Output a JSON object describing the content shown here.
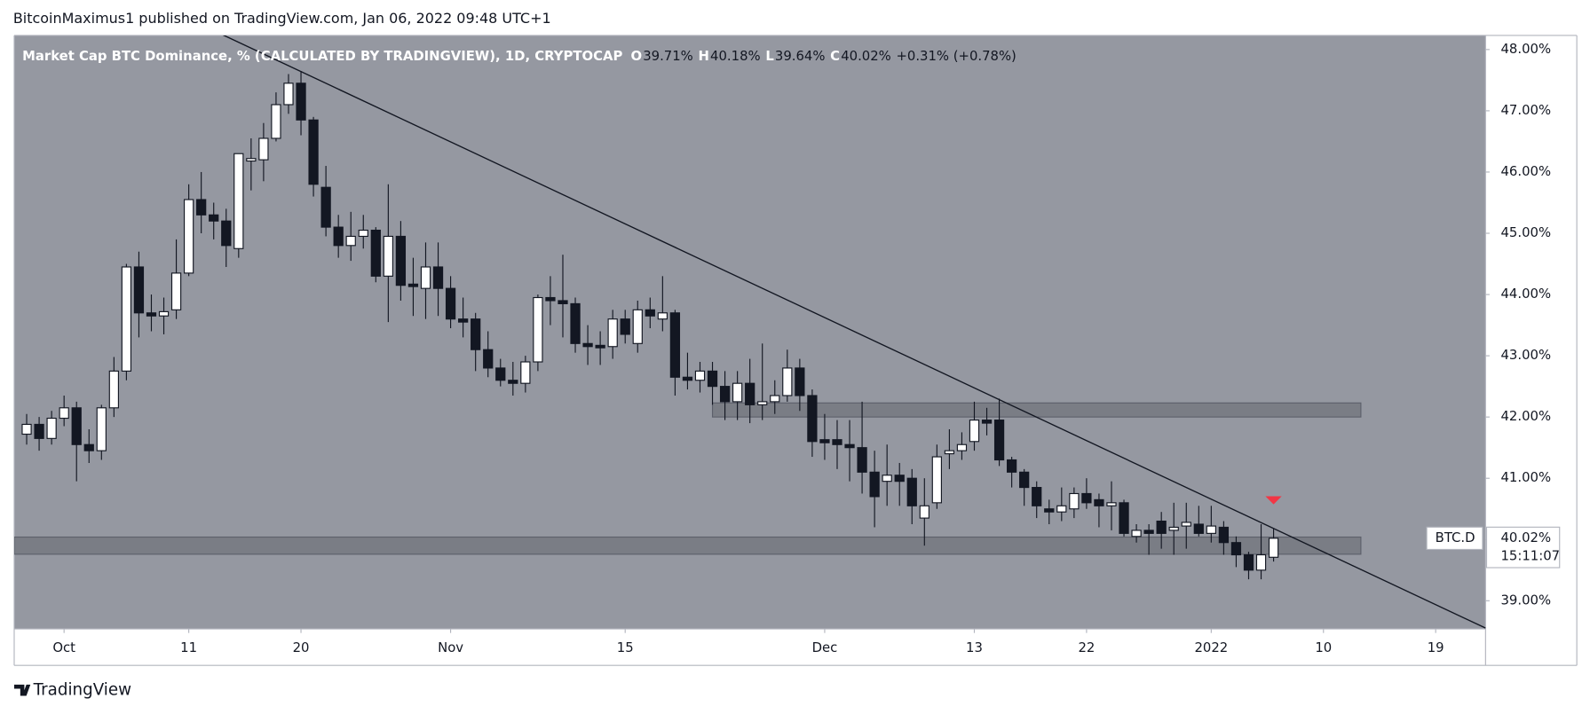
{
  "header": "BitcoinMaximus1 published on TradingView.com, Jan 06, 2022 09:48 UTC+1",
  "footer": "TradingView",
  "chart_data": {
    "type": "candlestick",
    "title": "Market Cap BTC Dominance, % (CALCULATED BY TRADINGVIEW), 1D, CRYPTOCAP",
    "legend_items": [
      {
        "key": "O",
        "value": "39.71%"
      },
      {
        "key": "H",
        "value": "40.18%"
      },
      {
        "key": "L",
        "value": "39.64%"
      },
      {
        "key": "C",
        "value": "40.02%"
      }
    ],
    "change": "+0.31% (+0.78%)",
    "up_color": "#ffffff",
    "down_color": "#131722",
    "background": "#9598a1",
    "x": [
      "2021-09-28",
      "2021-09-29",
      "2021-09-30",
      "2021-10-01",
      "2021-10-02",
      "2021-10-03",
      "2021-10-04",
      "2021-10-05",
      "2021-10-06",
      "2021-10-07",
      "2021-10-08",
      "2021-10-09",
      "2021-10-10",
      "2021-10-11",
      "2021-10-12",
      "2021-10-13",
      "2021-10-14",
      "2021-10-15",
      "2021-10-16",
      "2021-10-17",
      "2021-10-18",
      "2021-10-19",
      "2021-10-20",
      "2021-10-21",
      "2021-10-22",
      "2021-10-23",
      "2021-10-24",
      "2021-10-25",
      "2021-10-26",
      "2021-10-27",
      "2021-10-28",
      "2021-10-29",
      "2021-10-30",
      "2021-10-31",
      "2021-11-01",
      "2021-11-02",
      "2021-11-03",
      "2021-11-04",
      "2021-11-05",
      "2021-11-06",
      "2021-11-07",
      "2021-11-08",
      "2021-11-09",
      "2021-11-10",
      "2021-11-11",
      "2021-11-12",
      "2021-11-13",
      "2021-11-14",
      "2021-11-15",
      "2021-11-16",
      "2021-11-17",
      "2021-11-18",
      "2021-11-19",
      "2021-11-20",
      "2021-11-21",
      "2021-11-22",
      "2021-11-23",
      "2021-11-24",
      "2021-11-25",
      "2021-11-26",
      "2021-11-27",
      "2021-11-28",
      "2021-11-29",
      "2021-11-30",
      "2021-12-01",
      "2021-12-02",
      "2021-12-03",
      "2021-12-04",
      "2021-12-05",
      "2021-12-06",
      "2021-12-07",
      "2021-12-08",
      "2021-12-09",
      "2021-12-10",
      "2021-12-11",
      "2021-12-12",
      "2021-12-13",
      "2021-12-14",
      "2021-12-15",
      "2021-12-16",
      "2021-12-17",
      "2021-12-18",
      "2021-12-19",
      "2021-12-20",
      "2021-12-21",
      "2021-12-22",
      "2021-12-23",
      "2021-12-24",
      "2021-12-25",
      "2021-12-26",
      "2021-12-27",
      "2021-12-28",
      "2021-12-29",
      "2021-12-30",
      "2021-12-31",
      "2022-01-01",
      "2022-01-02",
      "2022-01-03",
      "2022-01-04",
      "2022-01-05",
      "2022-01-06"
    ],
    "open": [
      41.72,
      41.88,
      41.65,
      41.98,
      42.15,
      41.55,
      41.45,
      42.15,
      42.75,
      44.45,
      43.7,
      43.65,
      43.75,
      44.35,
      45.55,
      45.3,
      45.2,
      44.75,
      46.18,
      46.2,
      46.55,
      47.1,
      47.45,
      46.85,
      45.75,
      45.1,
      44.8,
      44.95,
      45.05,
      44.3,
      44.95,
      44.17,
      44.1,
      44.45,
      44.1,
      43.6,
      43.6,
      43.1,
      42.8,
      42.6,
      42.55,
      42.9,
      43.95,
      43.9,
      43.85,
      43.2,
      43.17,
      43.15,
      43.6,
      43.2,
      43.75,
      43.6,
      43.7,
      42.65,
      42.6,
      42.75,
      42.5,
      42.25,
      42.55,
      42.2,
      42.25,
      42.35,
      42.8,
      42.35,
      41.63,
      41.63,
      41.55,
      41.5,
      41.1,
      40.95,
      41.05,
      41.0,
      40.35,
      40.6,
      41.4,
      41.45,
      41.6,
      41.95,
      41.95,
      41.3,
      41.1,
      40.85,
      40.5,
      40.45,
      40.5,
      40.75,
      40.65,
      40.55,
      40.6,
      40.05,
      40.15,
      40.3,
      40.15,
      40.22,
      40.25,
      40.1,
      40.2,
      39.95,
      39.75,
      39.5,
      39.71
    ],
    "high": [
      42.05,
      42.0,
      42.1,
      42.35,
      42.25,
      41.8,
      42.2,
      42.98,
      44.5,
      44.7,
      44.0,
      43.95,
      44.9,
      45.8,
      46.0,
      45.5,
      45.4,
      46.3,
      46.55,
      46.8,
      47.3,
      47.6,
      47.65,
      46.9,
      46.1,
      45.3,
      45.35,
      45.3,
      45.1,
      45.8,
      45.2,
      44.6,
      44.85,
      44.85,
      44.3,
      43.95,
      43.7,
      43.4,
      42.95,
      42.9,
      43.0,
      44.0,
      44.3,
      44.65,
      43.95,
      43.5,
      43.4,
      43.75,
      43.75,
      43.9,
      43.95,
      44.3,
      43.75,
      43.05,
      42.9,
      42.9,
      42.75,
      42.75,
      42.95,
      43.2,
      42.6,
      43.1,
      42.95,
      42.45,
      42.05,
      41.95,
      41.95,
      42.25,
      41.45,
      41.55,
      41.25,
      41.15,
      41.0,
      41.55,
      41.8,
      41.75,
      42.25,
      42.15,
      42.3,
      41.35,
      41.15,
      40.95,
      40.65,
      40.85,
      40.85,
      41.0,
      40.75,
      40.95,
      40.65,
      40.25,
      40.25,
      40.45,
      40.6,
      40.6,
      40.55,
      40.55,
      40.3,
      40.05,
      39.8,
      40.25,
      40.18
    ],
    "low": [
      41.55,
      41.45,
      41.55,
      41.85,
      40.95,
      41.25,
      41.3,
      42.0,
      42.6,
      43.3,
      43.4,
      43.35,
      43.6,
      44.3,
      45.0,
      44.9,
      44.45,
      44.6,
      45.7,
      45.85,
      46.5,
      46.95,
      46.6,
      45.6,
      44.95,
      44.6,
      44.55,
      44.75,
      44.2,
      43.55,
      43.9,
      43.65,
      43.6,
      43.65,
      43.45,
      43.3,
      42.75,
      42.65,
      42.5,
      42.35,
      42.4,
      42.75,
      43.5,
      43.3,
      43.05,
      42.85,
      42.85,
      42.95,
      43.2,
      43.05,
      43.45,
      43.4,
      42.35,
      42.45,
      42.4,
      42.2,
      41.95,
      41.95,
      41.9,
      41.95,
      42.05,
      42.25,
      42.1,
      41.35,
      41.3,
      41.15,
      40.95,
      40.75,
      40.2,
      40.55,
      40.55,
      40.25,
      39.9,
      40.5,
      41.15,
      41.3,
      41.45,
      41.7,
      41.2,
      40.85,
      40.55,
      40.35,
      40.25,
      40.3,
      40.35,
      40.5,
      40.2,
      40.15,
      40.05,
      39.95,
      39.75,
      39.85,
      39.75,
      39.85,
      40.05,
      39.95,
      39.75,
      39.55,
      39.35,
      39.35,
      39.64
    ],
    "close": [
      41.88,
      41.65,
      41.98,
      42.15,
      41.55,
      41.45,
      42.15,
      42.75,
      44.45,
      43.7,
      43.65,
      43.72,
      44.35,
      45.55,
      45.3,
      45.2,
      44.8,
      46.3,
      46.22,
      46.55,
      47.1,
      47.45,
      46.85,
      45.8,
      45.1,
      44.8,
      44.95,
      45.05,
      44.3,
      44.95,
      44.15,
      44.13,
      44.45,
      44.1,
      43.6,
      43.55,
      43.1,
      42.8,
      42.6,
      42.55,
      42.9,
      43.95,
      43.9,
      43.85,
      43.2,
      43.15,
      43.13,
      43.6,
      43.35,
      43.75,
      43.65,
      43.7,
      42.65,
      42.6,
      42.75,
      42.5,
      42.25,
      42.55,
      42.2,
      42.25,
      42.35,
      42.8,
      42.35,
      41.6,
      41.58,
      41.55,
      41.5,
      41.1,
      40.7,
      41.05,
      40.95,
      40.55,
      40.55,
      41.35,
      41.45,
      41.55,
      41.95,
      41.9,
      41.3,
      41.1,
      40.85,
      40.55,
      40.45,
      40.55,
      40.75,
      40.6,
      40.55,
      40.6,
      40.1,
      40.15,
      40.1,
      40.1,
      40.2,
      40.28,
      40.1,
      40.22,
      39.95,
      39.75,
      39.5,
      39.75,
      40.02
    ],
    "xlim": [
      "2021-09-27",
      "2022-01-23"
    ],
    "xticks": [
      {
        "value": "2021-10-01",
        "label": "Oct"
      },
      {
        "value": "2021-10-11",
        "label": "11"
      },
      {
        "value": "2021-10-20",
        "label": "20"
      },
      {
        "value": "2021-11-01",
        "label": "Nov"
      },
      {
        "value": "2021-11-15",
        "label": "15"
      },
      {
        "value": "2021-12-01",
        "label": "Dec"
      },
      {
        "value": "2021-12-13",
        "label": "13"
      },
      {
        "value": "2021-12-22",
        "label": "22"
      },
      {
        "value": "2022-01-01",
        "label": "2022"
      },
      {
        "value": "2022-01-10",
        "label": "10"
      },
      {
        "value": "2022-01-19",
        "label": "19"
      }
    ],
    "ylim": [
      38.54,
      48.23
    ],
    "yticks": [
      {
        "value": 39,
        "label": "39.00%"
      },
      {
        "value": 40,
        "label": "40.00%"
      },
      {
        "value": 41,
        "label": "41.00%"
      },
      {
        "value": 42,
        "label": "42.00%"
      },
      {
        "value": 43,
        "label": "43.00%"
      },
      {
        "value": 44,
        "label": "44.00%"
      },
      {
        "value": 45,
        "label": "45.00%"
      },
      {
        "value": 46,
        "label": "46.00%"
      },
      {
        "value": 47,
        "label": "47.00%"
      },
      {
        "value": 48,
        "label": "48.00%"
      }
    ],
    "grid": false,
    "trendline": [
      {
        "x": "2021-10-20",
        "y": 47.64
      },
      {
        "x": "2022-01-06",
        "y": 40.18
      }
    ],
    "zones": [
      {
        "x": [
          "2021-11-22",
          "2022-01-13"
        ],
        "y": [
          42.0,
          42.23
        ]
      },
      {
        "x": [
          "2021-09-27",
          "2022-01-13"
        ],
        "y": [
          39.76,
          40.04
        ]
      }
    ],
    "marker": {
      "x": "2022-01-06",
      "y": 40.64,
      "color": "#f23645"
    },
    "last_price": {
      "symbol": "BTC.D",
      "value": 40.02,
      "label": "40.02%",
      "countdown": "15:11:07"
    }
  }
}
